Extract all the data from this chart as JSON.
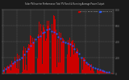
{
  "title": "Solar PV/Inverter Performance Total PV Panel & Running Average Power Output",
  "bg_color": "#1a1a1a",
  "plot_bg": "#2a2a2a",
  "grid_color": "#ffffff",
  "bar_color": "#cc0000",
  "avg_color": "#2255ff",
  "n_bars": 144,
  "ylim_max": 800,
  "yticks": [
    0,
    200,
    400,
    600,
    800
  ],
  "ylabel_right": [
    "0",
    "200",
    "400",
    "600",
    "800"
  ],
  "legend_labels": [
    "Total PV Panel Power",
    "Running Avg"
  ],
  "legend_colors": [
    "#cc0000",
    "#2255ff"
  ],
  "title_color": "#cccccc",
  "tick_color": "#888888",
  "spine_color": "#555555",
  "legend_bg": "#1a1a1a",
  "peak_shift": 0.42,
  "sigma": 0.2
}
